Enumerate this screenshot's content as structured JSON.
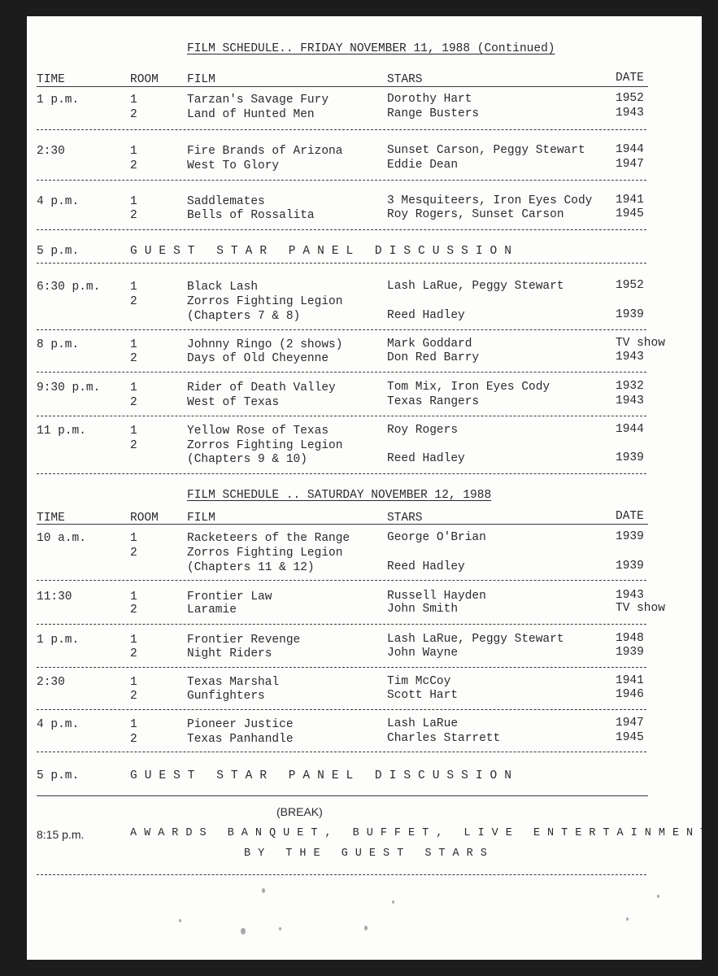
{
  "friday": {
    "title": "FILM SCHEDULE.. FRIDAY NOVEMBER 11, 1988 (Continued)",
    "headers": {
      "time": "TIME",
      "room": "ROOM",
      "film": "FILM",
      "stars": "STARS",
      "date": "DATE"
    },
    "blocks": [
      {
        "time": "1 p.m.",
        "rows": [
          {
            "room": "1",
            "film": "Tarzan's Savage Fury",
            "stars": "Dorothy Hart",
            "date": "1952"
          },
          {
            "room": "2",
            "film": "Land of Hunted Men",
            "stars": "Range Busters",
            "date": "1943"
          }
        ]
      },
      {
        "time": "2:30",
        "rows": [
          {
            "room": "1",
            "film": "Fire Brands of Arizona",
            "stars": "Sunset Carson, Peggy Stewart",
            "date": "1944"
          },
          {
            "room": "2",
            "film": "West To Glory",
            "stars": "Eddie Dean",
            "date": "1947"
          }
        ]
      },
      {
        "time": "4 p.m.",
        "rows": [
          {
            "room": "1",
            "film": "Saddlemates",
            "stars": "3 Mesquiteers, Iron Eyes Cody",
            "date": "1941"
          },
          {
            "room": "2",
            "film": "Bells of Rossalita",
            "stars": "Roy Rogers, Sunset Carson",
            "date": "1945"
          }
        ]
      },
      {
        "time": "5 p.m.",
        "event": "GUEST STAR PANEL DISCUSSION"
      },
      {
        "time": "6:30 p.m.",
        "rows": [
          {
            "room": "1",
            "film": "Black Lash",
            "stars": "Lash LaRue, Peggy Stewart",
            "date": "1952"
          },
          {
            "room": "2",
            "film": "Zorros Fighting Legion",
            "stars": "",
            "date": ""
          },
          {
            "room": "",
            "film": "(Chapters 7 & 8)",
            "stars": "Reed Hadley",
            "date": "1939"
          }
        ]
      },
      {
        "time": "8 p.m.",
        "rows": [
          {
            "room": "1",
            "film": "Johnny Ringo (2 shows)",
            "stars": "Mark Goddard",
            "date": "TV show"
          },
          {
            "room": "2",
            "film": "Days of Old Cheyenne",
            "stars": "Don Red Barry",
            "date": "1943"
          }
        ]
      },
      {
        "time": "9:30 p.m.",
        "rows": [
          {
            "room": "1",
            "film": "Rider of Death Valley",
            "stars": "Tom Mix, Iron Eyes Cody",
            "date": "1932"
          },
          {
            "room": "2",
            "film": "West of Texas",
            "stars": "Texas Rangers",
            "date": "1943"
          }
        ]
      },
      {
        "time": "11 p.m.",
        "rows": [
          {
            "room": "1",
            "film": "Yellow Rose of Texas",
            "stars": "Roy Rogers",
            "date": "1944"
          },
          {
            "room": "2",
            "film": "Zorros Fighting Legion",
            "stars": "",
            "date": ""
          },
          {
            "room": "",
            "film": "(Chapters 9 & 10)",
            "stars": "Reed Hadley",
            "date": "1939"
          }
        ]
      }
    ]
  },
  "saturday": {
    "title": "FILM SCHEDULE .. SATURDAY NOVEMBER 12, 1988",
    "headers": {
      "time": "TIME",
      "room": "ROOM",
      "film": "FILM",
      "stars": "STARS",
      "date": "DATE"
    },
    "blocks": [
      {
        "time": "10 a.m.",
        "rows": [
          {
            "room": "1",
            "film": "Racketeers of the Range",
            "stars": "George O'Brian",
            "date": "1939"
          },
          {
            "room": "2",
            "film": "Zorros Fighting Legion",
            "stars": "",
            "date": ""
          },
          {
            "room": "",
            "film": "(Chapters 11 & 12)",
            "stars": "Reed Hadley",
            "date": "1939"
          }
        ]
      },
      {
        "time": "11:30",
        "rows": [
          {
            "room": "1",
            "film": "Frontier Law",
            "stars": "Russell Hayden",
            "date": "1943"
          },
          {
            "room": "2",
            "film": "Laramie",
            "stars": "John Smith",
            "date": "TV show"
          }
        ]
      },
      {
        "time": "1 p.m.",
        "rows": [
          {
            "room": "1",
            "film": "Frontier Revenge",
            "stars": "Lash LaRue, Peggy Stewart",
            "date": "1948"
          },
          {
            "room": "2",
            "film": "Night Riders",
            "stars": "John Wayne",
            "date": "1939"
          }
        ]
      },
      {
        "time": "2:30",
        "rows": [
          {
            "room": "1",
            "film": "Texas Marshal",
            "stars": "Tim McCoy",
            "date": "1941"
          },
          {
            "room": "2",
            "film": "Gunfighters",
            "stars": "Scott Hart",
            "date": "1946"
          }
        ]
      },
      {
        "time": "4 p.m.",
        "rows": [
          {
            "room": "1",
            "film": "Pioneer Justice",
            "stars": "Lash LaRue",
            "date": "1947"
          },
          {
            "room": "2",
            "film": "Texas Panhandle",
            "stars": "Charles Starrett",
            "date": "1945"
          }
        ]
      },
      {
        "time": "5 p.m.",
        "event": "GUEST STAR PANEL DISCUSSION"
      }
    ],
    "break_label": "(BREAK)",
    "banquet": {
      "time": "8:15 p.m.",
      "line1": "AWARDS BANQUET, BUFFET, LIVE ENTERTAINMENT",
      "line2": "BY THE GUEST STARS"
    }
  }
}
